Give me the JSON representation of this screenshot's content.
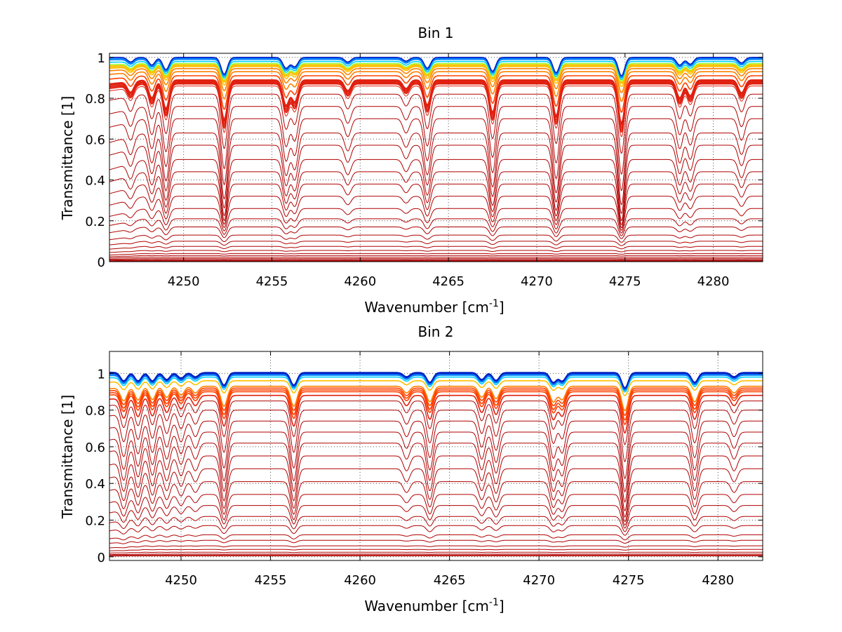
{
  "chart_data": [
    {
      "type": "line",
      "title": "Bin 1",
      "xlabel": "Wavenumber [cm",
      "xlabel_sup": "-1",
      "xlabel_suffix": "]",
      "ylabel": "Transmittance [1]",
      "xlim": [
        4245.8,
        4282.8
      ],
      "ylim": [
        0,
        1.02
      ],
      "xticks": [
        4250,
        4255,
        4260,
        4265,
        4270,
        4275,
        4280
      ],
      "xtick_labels": [
        "4250",
        "4255",
        "4260",
        "4265",
        "4270",
        "4275",
        "4280"
      ],
      "yticks": [
        0,
        0.2,
        0.4,
        0.6,
        0.8,
        1
      ],
      "ytick_labels": [
        "0",
        "0.2",
        "0.4",
        "0.6",
        "0.8",
        "1"
      ],
      "grid": true,
      "colormap": "jet",
      "curve_baselines": [
        0.003,
        0.006,
        0.01,
        0.015,
        0.022,
        0.03,
        0.04,
        0.055,
        0.075,
        0.1,
        0.13,
        0.17,
        0.21,
        0.26,
        0.32,
        0.38,
        0.44,
        0.5,
        0.57,
        0.63,
        0.7,
        0.76,
        0.82,
        0.86,
        0.87,
        0.875,
        0.88,
        0.885,
        0.888,
        0.89,
        0.91,
        0.93,
        0.945,
        0.955,
        0.96,
        0.965,
        0.97,
        0.98,
        0.99,
        0.995,
        1.0
      ],
      "absorption_lines": [
        {
          "center": 4247.0,
          "depth": 0.15
        },
        {
          "center": 4248.2,
          "depth": 0.25
        },
        {
          "center": 4249.0,
          "depth": 0.4
        },
        {
          "center": 4252.3,
          "depth": 0.55
        },
        {
          "center": 4255.8,
          "depth": 0.35
        },
        {
          "center": 4256.3,
          "depth": 0.3
        },
        {
          "center": 4259.3,
          "depth": 0.15
        },
        {
          "center": 4262.6,
          "depth": 0.12
        },
        {
          "center": 4263.8,
          "depth": 0.35
        },
        {
          "center": 4267.5,
          "depth": 0.45
        },
        {
          "center": 4271.1,
          "depth": 0.5
        },
        {
          "center": 4274.8,
          "depth": 0.6
        },
        {
          "center": 4278.1,
          "depth": 0.25
        },
        {
          "center": 4278.7,
          "depth": 0.22
        },
        {
          "center": 4281.6,
          "depth": 0.18
        }
      ]
    },
    {
      "type": "line",
      "title": "Bin 2",
      "xlabel": "Wavenumber [cm",
      "xlabel_sup": "-1",
      "xlabel_suffix": "]",
      "ylabel": "Transmittance [1]",
      "xlim": [
        4246.0,
        4282.5
      ],
      "ylim": [
        -0.02,
        1.12
      ],
      "xticks": [
        4250,
        4255,
        4260,
        4265,
        4270,
        4275,
        4280
      ],
      "xtick_labels": [
        "4250",
        "4255",
        "4260",
        "4265",
        "4270",
        "4275",
        "4280"
      ],
      "yticks": [
        0,
        0.2,
        0.4,
        0.6,
        0.8,
        1
      ],
      "ytick_labels": [
        "0",
        "0.2",
        "0.4",
        "0.6",
        "0.8",
        "1"
      ],
      "grid": true,
      "colormap": "jet",
      "curve_baselines": [
        0.005,
        0.01,
        0.015,
        0.025,
        0.04,
        0.06,
        0.09,
        0.12,
        0.17,
        0.22,
        0.28,
        0.34,
        0.41,
        0.48,
        0.55,
        0.62,
        0.68,
        0.74,
        0.8,
        0.85,
        0.88,
        0.9,
        0.91,
        0.92,
        0.93,
        0.96,
        0.98,
        0.99,
        0.995,
        1.0,
        1.002,
        1.005
      ],
      "absorption_lines": [
        {
          "center": 4246.8,
          "depth": 0.3
        },
        {
          "center": 4247.6,
          "depth": 0.3
        },
        {
          "center": 4248.4,
          "depth": 0.3
        },
        {
          "center": 4249.2,
          "depth": 0.25
        },
        {
          "center": 4250.0,
          "depth": 0.2
        },
        {
          "center": 4250.8,
          "depth": 0.15
        },
        {
          "center": 4252.4,
          "depth": 0.45
        },
        {
          "center": 4256.3,
          "depth": 0.45
        },
        {
          "center": 4262.6,
          "depth": 0.15
        },
        {
          "center": 4263.9,
          "depth": 0.35
        },
        {
          "center": 4266.8,
          "depth": 0.25
        },
        {
          "center": 4267.6,
          "depth": 0.28
        },
        {
          "center": 4270.8,
          "depth": 0.35
        },
        {
          "center": 4271.3,
          "depth": 0.3
        },
        {
          "center": 4274.8,
          "depth": 0.55
        },
        {
          "center": 4278.7,
          "depth": 0.35
        },
        {
          "center": 4280.9,
          "depth": 0.15
        }
      ]
    }
  ]
}
